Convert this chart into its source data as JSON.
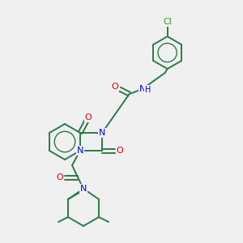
{
  "background_color": "#f0f0f0",
  "bond_color": "#2d7a4a",
  "atom_colors": {
    "N": "#0000ee",
    "O": "#dd0000",
    "Cl": "#22aa22",
    "C": "#2d7a4a"
  },
  "figsize": [
    3.0,
    3.0
  ],
  "dpi": 100,
  "lw": 1.4
}
